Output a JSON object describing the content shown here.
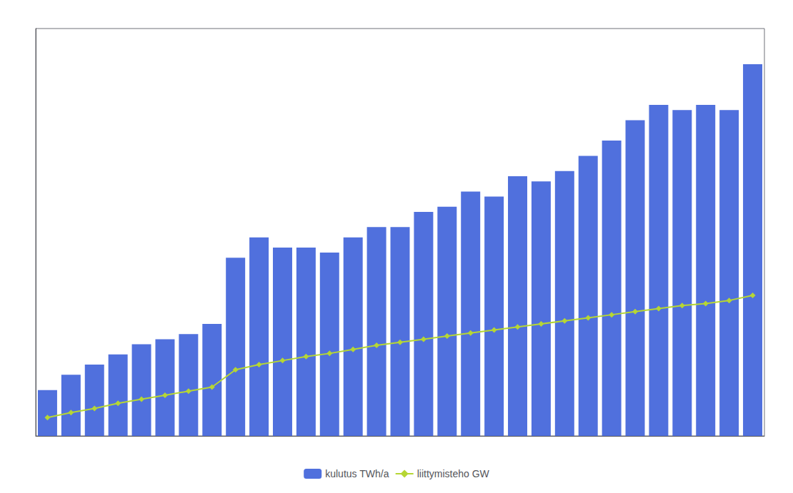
{
  "chart_data": {
    "type": "bar",
    "categories": [
      null,
      null,
      null,
      null,
      null,
      null,
      null,
      null,
      null,
      null,
      null,
      null,
      null,
      null,
      null,
      null,
      null,
      null,
      null,
      null,
      null,
      null,
      null,
      null,
      null,
      null,
      null,
      null,
      null,
      null,
      null
    ],
    "series": [
      {
        "name": "kulutus TWh/a",
        "type": "bar",
        "values": [
          4.5,
          6.0,
          7.0,
          8.0,
          9.0,
          9.5,
          10.0,
          11.0,
          17.5,
          19.5,
          18.5,
          18.5,
          18.0,
          19.5,
          20.5,
          20.5,
          22.0,
          22.5,
          24.0,
          23.5,
          25.5,
          25.0,
          26.0,
          27.5,
          29.0,
          31.0,
          32.5,
          32.0,
          32.5,
          32.0,
          36.5
        ]
      },
      {
        "name": "liittymisteho GW",
        "type": "line",
        "marker": "diamond",
        "values": [
          1.8,
          2.3,
          2.7,
          3.2,
          3.6,
          4.0,
          4.4,
          4.8,
          6.5,
          7.0,
          7.4,
          7.8,
          8.1,
          8.5,
          8.9,
          9.2,
          9.5,
          9.8,
          10.1,
          10.4,
          10.7,
          11.0,
          11.3,
          11.6,
          11.9,
          12.2,
          12.5,
          12.8,
          13.0,
          13.3,
          13.8
        ]
      }
    ],
    "ylim": [
      0,
      40
    ],
    "yticks": [],
    "grid": false,
    "legend": "bottom",
    "tick_labels": false
  }
}
